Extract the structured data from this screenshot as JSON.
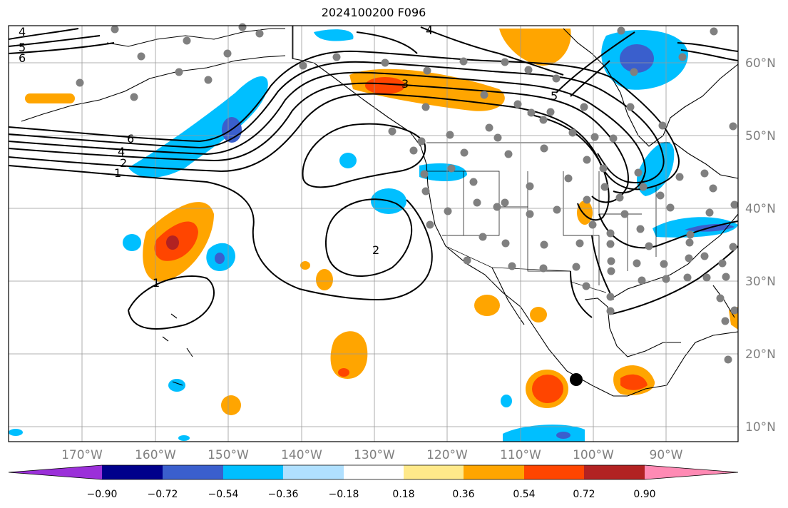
{
  "title": "2024100200 F096",
  "map": {
    "lon_labels": [
      "170°W",
      "160°W",
      "150°W",
      "140°W",
      "130°W",
      "120°W",
      "110°W",
      "100°W",
      "90°W"
    ],
    "lat_labels": [
      "60°N",
      "50°N",
      "40°N",
      "30°N",
      "20°N",
      "10°N"
    ],
    "contour_labels": [
      "4",
      "5",
      "6",
      "6",
      "4",
      "2",
      "1",
      "3",
      "2",
      "1",
      "4",
      "5"
    ],
    "land_color": "#ffffff",
    "line_color": "#000000",
    "grid_color": "#999999",
    "station_color": "#808080",
    "marker_color": "#000000"
  },
  "colorbar": {
    "ticks": [
      "−0.90",
      "−0.72",
      "−0.54",
      "−0.36",
      "−0.18",
      "0.18",
      "0.36",
      "0.54",
      "0.72",
      "0.90"
    ],
    "colors": [
      "#9b30d9",
      "#00008b",
      "#3a5fcd",
      "#00bfff",
      "#b0e0ff",
      "#ffffff",
      "#ffe98a",
      "#ffa500",
      "#ff4500",
      "#b22222",
      "#ff8ab4"
    ]
  }
}
